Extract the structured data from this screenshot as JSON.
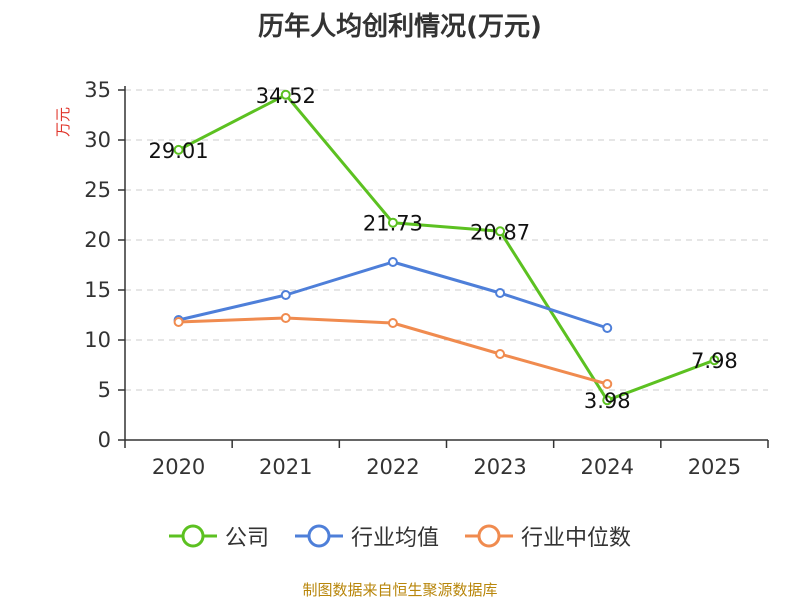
{
  "chart_data": {
    "type": "line",
    "title": "历年人均创利情况(万元)",
    "ylabel": "万元",
    "xlabel": "",
    "categories": [
      "2020",
      "2021",
      "2022",
      "2023",
      "2024",
      "2025"
    ],
    "ylim": [
      0,
      35
    ],
    "yticks": [
      0,
      5,
      10,
      15,
      20,
      25,
      30,
      35
    ],
    "grid": true,
    "legend_position": "bottom",
    "series": [
      {
        "name": "公司",
        "color": "#5cc121",
        "values": [
          29.01,
          34.52,
          21.73,
          20.87,
          3.98,
          7.98
        ],
        "labels": [
          "29.01",
          "34.52",
          "21.73",
          "20.87",
          "3.98",
          "7.98"
        ]
      },
      {
        "name": "行业均值",
        "color": "#4e7fd9",
        "values": [
          12.0,
          14.5,
          17.8,
          14.7,
          11.2,
          null
        ]
      },
      {
        "name": "行业中位数",
        "color": "#f08b4f",
        "values": [
          11.8,
          12.2,
          11.7,
          8.6,
          5.6,
          null
        ]
      }
    ]
  },
  "footer": {
    "source": "制图数据来自恒生聚源数据库"
  }
}
